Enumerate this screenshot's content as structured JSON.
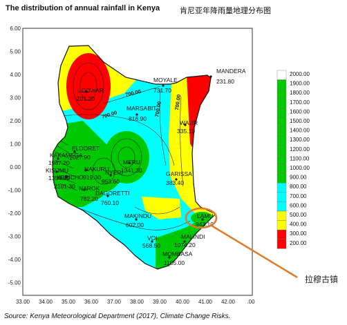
{
  "title": "The distribution of annual rainfall in Kenya",
  "subtitle": "肯尼亚年降雨量地理分布图",
  "source": "Source: Kenya Meteorological Department (2017), Climate Change Risks.",
  "annotation_label": "拉穆古镇",
  "axes": {
    "x_ticks": [
      "33.00",
      "34.00",
      "35.00",
      "36.00",
      "37.00",
      "38.00",
      "39.00",
      "40.00",
      "41.00",
      "42.00",
      ".00"
    ],
    "y_ticks": [
      "6.00",
      "5.00",
      "4.00",
      "3.00",
      "2.00",
      "1.00",
      "0.00",
      "-1.00",
      "-2.00",
      "-3.00",
      "-4.00",
      "-5.00"
    ]
  },
  "stations": [
    {
      "name": "LODWAR",
      "value": "201.20"
    },
    {
      "name": "MOYALE",
      "value": "731.70"
    },
    {
      "name": "MANDERA",
      "value": "231.80"
    },
    {
      "name": "MARSABIT",
      "value": "816.90"
    },
    {
      "name": "WAJIR",
      "value": "335.10"
    },
    {
      "name": "ELDORET",
      "value": "1027.90"
    },
    {
      "name": "KAKAMEGA",
      "value": "1987.20"
    },
    {
      "name": "KISUMU",
      "value": "1354.80"
    },
    {
      "name": "KERICHO",
      "value": "2161.30"
    },
    {
      "name": "NAKURU",
      "value": "919.30"
    },
    {
      "name": "NYERI",
      "value": "953.60"
    },
    {
      "name": "MERU",
      "value": "1341.30"
    },
    {
      "name": "NAROK",
      "value": "782.20"
    },
    {
      "name": "DAGORETTI",
      "value": "760.10"
    },
    {
      "name": "GARISSA",
      "value": "383.40"
    },
    {
      "name": "LAMU",
      "value": "943.10"
    },
    {
      "name": "MAKINDU",
      "value": "602.00"
    },
    {
      "name": "VOI",
      "value": "568.50"
    },
    {
      "name": "MALINDI",
      "value": "1074.20"
    },
    {
      "name": "MOMBASA",
      "value": "1105.00"
    }
  ],
  "contour_labels": [
    "700.00",
    "700.00",
    "700.00",
    "700.00"
  ],
  "legend": {
    "labels": [
      "2000.00",
      "1900.00",
      "1800.00",
      "1700.00",
      "1600.00",
      "1500.00",
      "1400.00",
      "1300.00",
      "1200.00",
      "1100.00",
      "1000.00",
      "900.00",
      "800.00",
      "700.00",
      "600.00",
      "500.00",
      "400.00",
      "300.00",
      "200.00"
    ],
    "colors": [
      "#ffffff",
      "#00c800",
      "#00c800",
      "#00c800",
      "#00c800",
      "#00c800",
      "#00c800",
      "#00c800",
      "#00c800",
      "#00c800",
      "#00c800",
      "#00c800",
      "#00ffff",
      "#00ffff",
      "#00ffff",
      "#ffff00",
      "#ffff00",
      "#ff0000",
      "#ff0000"
    ]
  },
  "colors": {
    "dry": "#ff0000",
    "semi_dry": "#ffff00",
    "moderate": "#00ffff",
    "wet": "#00c800",
    "callout": "#e07b2a"
  }
}
